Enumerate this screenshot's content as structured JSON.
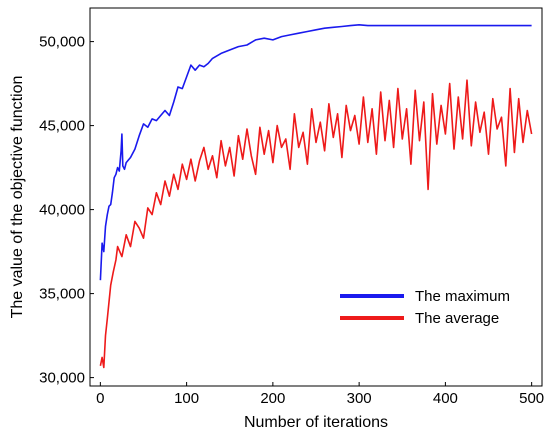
{
  "chart_data": {
    "type": "line",
    "xlabel": "Number of iterations",
    "ylabel": "The value of the objective function",
    "xlim": [
      -12,
      512
    ],
    "ylim": [
      29500,
      52000
    ],
    "x_ticks": [
      0,
      100,
      200,
      300,
      400,
      500
    ],
    "x_tick_labels": [
      "0",
      "100",
      "200",
      "300",
      "400",
      "500"
    ],
    "y_ticks": [
      30000,
      35000,
      40000,
      45000,
      50000
    ],
    "y_tick_labels": [
      "30,000",
      "35,000",
      "40,000",
      "45,000",
      "50,000"
    ],
    "grid": false,
    "legend_position": "bottom-right",
    "series": [
      {
        "name": "The maximum",
        "color": "#1a1aee",
        "x": [
          0,
          2,
          4,
          6,
          8,
          10,
          12,
          14,
          16,
          18,
          20,
          22,
          24,
          25,
          26,
          28,
          30,
          35,
          40,
          45,
          50,
          55,
          60,
          65,
          70,
          75,
          80,
          85,
          90,
          95,
          100,
          105,
          110,
          115,
          120,
          125,
          130,
          140,
          150,
          160,
          170,
          180,
          190,
          200,
          210,
          220,
          230,
          240,
          250,
          260,
          270,
          280,
          290,
          300,
          310,
          320,
          340,
          360,
          380,
          400,
          420,
          440,
          460,
          480,
          500
        ],
        "values": [
          35800,
          38000,
          37500,
          39000,
          39700,
          40200,
          40300,
          41000,
          41900,
          42100,
          42500,
          42300,
          43500,
          44500,
          42600,
          42400,
          42800,
          43100,
          43600,
          44400,
          45100,
          44900,
          45400,
          45300,
          45600,
          45900,
          45600,
          46400,
          47300,
          47200,
          47900,
          48600,
          48300,
          48600,
          48500,
          48700,
          49000,
          49300,
          49500,
          49700,
          49800,
          50100,
          50200,
          50100,
          50300,
          50400,
          50500,
          50600,
          50700,
          50800,
          50850,
          50900,
          50950,
          51000,
          50950,
          50950,
          50950,
          50950,
          50950,
          50950,
          50950,
          50950,
          50950,
          50950,
          50950
        ]
      },
      {
        "name": "The average",
        "color": "#ee1a1a",
        "x": [
          0,
          2,
          4,
          6,
          8,
          10,
          12,
          15,
          18,
          20,
          25,
          30,
          35,
          40,
          45,
          50,
          55,
          60,
          65,
          70,
          75,
          80,
          85,
          90,
          95,
          100,
          105,
          110,
          115,
          120,
          125,
          130,
          135,
          140,
          145,
          150,
          155,
          160,
          165,
          170,
          175,
          180,
          185,
          190,
          195,
          200,
          205,
          210,
          215,
          220,
          225,
          230,
          235,
          240,
          245,
          250,
          255,
          260,
          265,
          270,
          275,
          280,
          285,
          290,
          295,
          300,
          305,
          310,
          315,
          320,
          325,
          330,
          335,
          340,
          345,
          350,
          355,
          360,
          365,
          370,
          375,
          380,
          385,
          390,
          395,
          400,
          405,
          410,
          415,
          420,
          425,
          430,
          435,
          440,
          445,
          450,
          455,
          460,
          465,
          470,
          475,
          480,
          485,
          490,
          495,
          500
        ],
        "values": [
          30700,
          31200,
          30600,
          32500,
          33500,
          34500,
          35500,
          36300,
          37000,
          37800,
          37200,
          38500,
          37800,
          39300,
          38900,
          38300,
          40100,
          39700,
          41000,
          40300,
          41700,
          40800,
          42100,
          41200,
          42700,
          41800,
          43000,
          41700,
          42900,
          43700,
          42400,
          43200,
          41900,
          44100,
          42600,
          43700,
          42000,
          44400,
          43000,
          44800,
          43200,
          42100,
          44900,
          43300,
          44700,
          42800,
          45000,
          43700,
          44200,
          42400,
          45700,
          43700,
          44600,
          42700,
          46000,
          44000,
          45200,
          43500,
          46300,
          44300,
          45700,
          43100,
          46200,
          44700,
          45600,
          43900,
          46700,
          44000,
          46000,
          43300,
          47000,
          44100,
          46500,
          43700,
          47200,
          44200,
          46000,
          42700,
          47100,
          44100,
          46400,
          41200,
          46900,
          43900,
          46200,
          44500,
          47500,
          43600,
          46700,
          44200,
          47700,
          43800,
          46400,
          44600,
          45800,
          43300,
          46600,
          44800,
          45500,
          42600,
          47200,
          43400,
          46600,
          44000,
          45900,
          44500
        ]
      }
    ]
  }
}
